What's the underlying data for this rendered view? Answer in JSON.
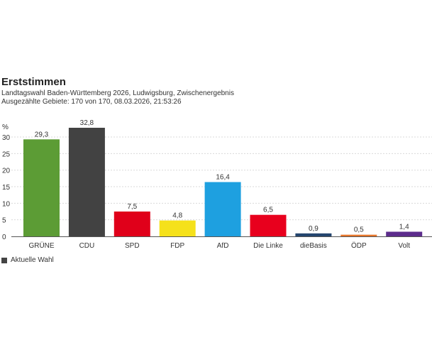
{
  "header": {
    "title": "Erststimmen",
    "subtitle": "Landtagswahl Baden-Württemberg 2026, Ludwigsburg, Zwischenergebnis",
    "status": "Ausgezählte Gebiete: 170 von 170, 08.03.2026, 21:53:26"
  },
  "legend": {
    "label": "Aktuelle Wahl"
  },
  "chart_data": {
    "type": "bar",
    "title": "Erststimmen",
    "ylabel": "%",
    "xlabel": "",
    "ylim": [
      0,
      32.8
    ],
    "yticks": [
      0,
      5,
      10,
      15,
      20,
      25,
      30
    ],
    "grid": true,
    "categories": [
      "GRÜNE",
      "CDU",
      "SPD",
      "FDP",
      "AfD",
      "Die Linke",
      "dieBasis",
      "ÖDP",
      "Volt"
    ],
    "series": [
      {
        "name": "Aktuelle Wahl",
        "values": [
          29.3,
          32.8,
          7.5,
          4.8,
          16.4,
          6.5,
          0.9,
          0.5,
          1.4
        ],
        "labels": [
          "29,3",
          "32,8",
          "7,5",
          "4,8",
          "16,4",
          "6,5",
          "0,9",
          "0,5",
          "1,4"
        ],
        "colors": [
          "#5c9c35",
          "#424242",
          "#e0001a",
          "#f5e11b",
          "#1ea0e0",
          "#e8001d",
          "#24456e",
          "#e6762b",
          "#5c2c8c"
        ]
      }
    ]
  }
}
